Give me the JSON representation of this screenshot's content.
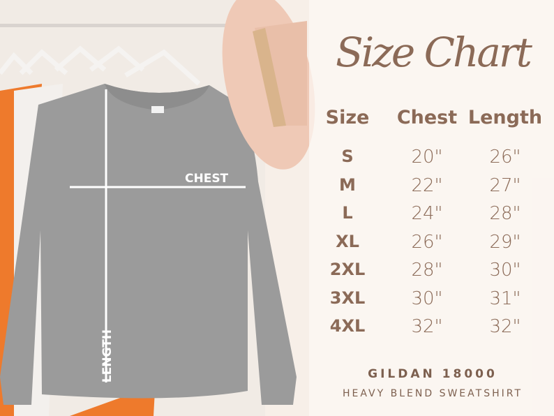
{
  "title": "Size Chart",
  "columns": [
    "Size",
    "Chest",
    "Length"
  ],
  "rows": [
    {
      "size": "S",
      "chest": "20\"",
      "length": "26\""
    },
    {
      "size": "M",
      "chest": "22\"",
      "length": "27\""
    },
    {
      "size": "L",
      "chest": "24\"",
      "length": "28\""
    },
    {
      "size": "XL",
      "chest": "26\"",
      "length": "29\""
    },
    {
      "size": "2XL",
      "chest": "28\"",
      "length": "30\""
    },
    {
      "size": "3XL",
      "chest": "30\"",
      "length": "31\""
    },
    {
      "size": "4XL",
      "chest": "32\"",
      "length": "32\""
    }
  ],
  "brand": "GILDAN 18000",
  "product": "HEAVY BLEND SWEATSHIRT",
  "labels": {
    "chest": "CHEST",
    "length": "LENGTH"
  },
  "colors": {
    "text": "#8b6a57",
    "sweatshirt": "#9a9a9a",
    "hat": "#efc9b6"
  }
}
